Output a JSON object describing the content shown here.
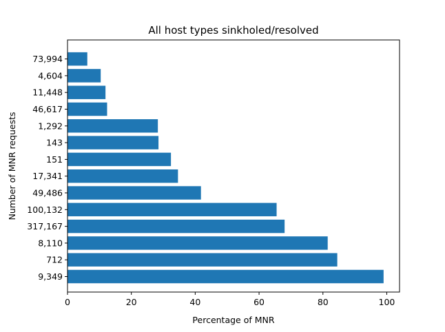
{
  "chart_data": {
    "type": "bar",
    "orientation": "horizontal",
    "title": "All host types sinkholed/resolved",
    "xlabel": "Percentage of MNR",
    "ylabel": "Number of MNR requests",
    "xlim": [
      0,
      104
    ],
    "xticks": [
      0,
      20,
      40,
      60,
      80,
      100
    ],
    "categories": [
      "9,349",
      "712",
      "8,110",
      "317,167",
      "100,132",
      "49,486",
      "17,341",
      "151",
      "143",
      "1,292",
      "46,617",
      "11,448",
      "4,604",
      "73,994"
    ],
    "values": [
      99.0,
      84.5,
      81.5,
      68.0,
      65.5,
      41.8,
      34.6,
      32.4,
      28.5,
      28.3,
      12.4,
      11.9,
      10.4,
      6.2
    ],
    "bar_color": "#1f77b4",
    "grid": false,
    "legend": false
  }
}
